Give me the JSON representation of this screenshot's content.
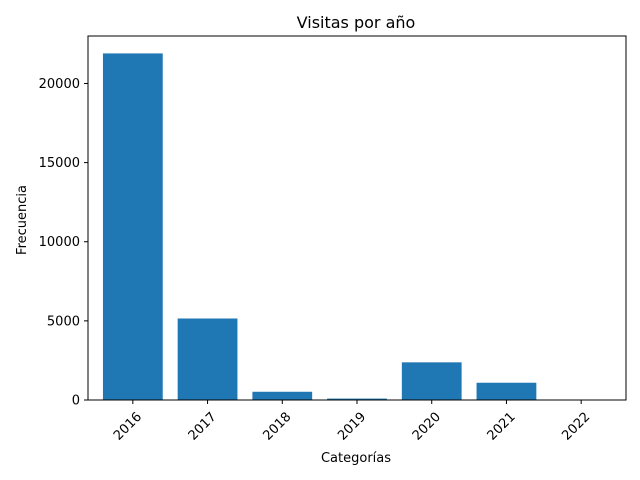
{
  "chart_data": {
    "type": "bar",
    "title": "Visitas por año",
    "xlabel": "Categorías",
    "ylabel": "Frecuencia",
    "categories": [
      "2016",
      "2017",
      "2018",
      "2019",
      "2020",
      "2021",
      "2022"
    ],
    "values": [
      21900,
      5150,
      520,
      90,
      2380,
      1090,
      15
    ],
    "ylim": [
      0,
      23000
    ],
    "yticks": [
      0,
      5000,
      10000,
      15000,
      20000
    ],
    "ytick_labels": [
      "0",
      "5000",
      "10000",
      "15000",
      "20000"
    ],
    "grid": false,
    "bar_color": "#1f77b4",
    "xtick_rotation": 45
  }
}
